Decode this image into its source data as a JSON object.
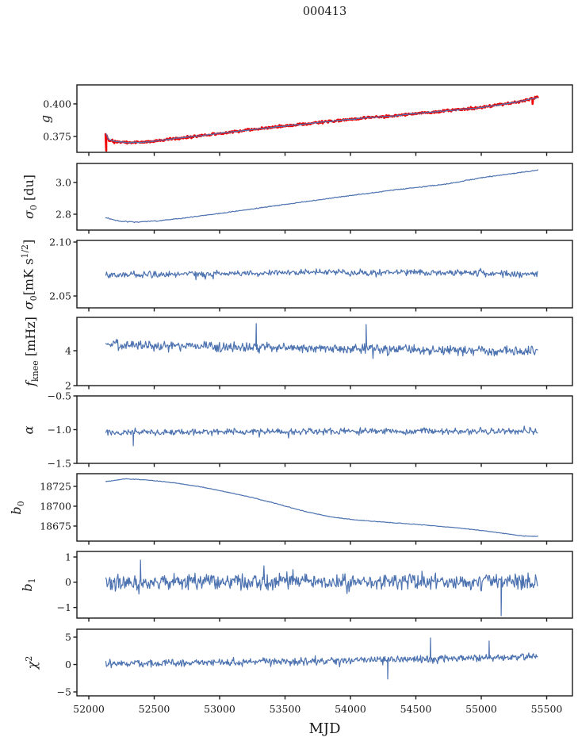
{
  "title": "000413",
  "xlabel": "MJD",
  "colors": {
    "line": "#4c72b0",
    "accent_red": "#f20000",
    "axis": "#1a1a1a",
    "background": "#ffffff"
  },
  "x_axis": {
    "lim": [
      51909,
      55697
    ],
    "ticks": [
      52000,
      52500,
      53000,
      53500,
      54000,
      54500,
      55000,
      55500
    ],
    "tick_labels": [
      "52000",
      "52500",
      "53000",
      "53500",
      "54000",
      "54500",
      "55000",
      "55500"
    ]
  },
  "chart_data": [
    {
      "name": "g",
      "type": "line",
      "ylabel_text": "g",
      "ylabel_segments": [
        [
          "i",
          "g"
        ]
      ],
      "ylim": [
        0.3628,
        0.4146
      ],
      "yticks": [
        0.4,
        0.375
      ],
      "ytick_labels": [
        "0.400",
        "0.375"
      ],
      "series": [
        {
          "name": "gain-raw",
          "color": "#f20000",
          "width": 2.6,
          "seed": 101,
          "n": 640,
          "x_range": [
            52128,
            55432
          ],
          "noise": 0.0011,
          "tail": 2.0,
          "tail_p": 0.05,
          "trend": [
            [
              52128,
              0.377
            ],
            [
              52150,
              0.3726
            ],
            [
              52210,
              0.371
            ],
            [
              52310,
              0.3702
            ],
            [
              52450,
              0.3708
            ],
            [
              52650,
              0.3733
            ],
            [
              52900,
              0.3762
            ],
            [
              53150,
              0.3792
            ],
            [
              53400,
              0.382
            ],
            [
              53650,
              0.3846
            ],
            [
              53900,
              0.3872
            ],
            [
              54150,
              0.3896
            ],
            [
              54300,
              0.3904
            ],
            [
              54450,
              0.3922
            ],
            [
              54700,
              0.3944
            ],
            [
              54950,
              0.3966
            ],
            [
              55150,
              0.3995
            ],
            [
              55300,
              0.402
            ],
            [
              55432,
              0.405
            ]
          ],
          "spikes": [
            [
              52133,
              0.364
            ],
            [
              55392,
              0.4
            ]
          ]
        },
        {
          "name": "gain-smoothed",
          "color": "#4c72b0",
          "width": 1.2,
          "seed": 102,
          "n": 620,
          "x_range": [
            52132,
            55428
          ],
          "noise": 0.0005,
          "tail": 1.4,
          "tail_p": 0.04,
          "trend": [
            [
              52132,
              0.3768
            ],
            [
              52150,
              0.3726
            ],
            [
              52210,
              0.371
            ],
            [
              52310,
              0.3702
            ],
            [
              52450,
              0.3708
            ],
            [
              52650,
              0.3733
            ],
            [
              52900,
              0.3762
            ],
            [
              53150,
              0.3792
            ],
            [
              53400,
              0.382
            ],
            [
              53650,
              0.3846
            ],
            [
              53900,
              0.3872
            ],
            [
              54150,
              0.3896
            ],
            [
              54300,
              0.3904
            ],
            [
              54450,
              0.3922
            ],
            [
              54700,
              0.3944
            ],
            [
              54950,
              0.3966
            ],
            [
              55150,
              0.3995
            ],
            [
              55300,
              0.402
            ],
            [
              55428,
              0.4048
            ]
          ],
          "spikes": []
        }
      ]
    },
    {
      "name": "sigma0-du",
      "type": "line",
      "ylabel_text": "sigma_0 [du]",
      "ylabel_segments": [
        [
          "i",
          "σ"
        ],
        [
          "sub",
          "0"
        ],
        [
          "n",
          " [du]"
        ]
      ],
      "ylim": [
        2.7,
        3.12
      ],
      "yticks": [
        3.0,
        2.8
      ],
      "ytick_labels": [
        "3.0",
        "2.8"
      ],
      "series": [
        {
          "name": "sigma0-du",
          "color": "#4c72b0",
          "width": 1.2,
          "seed": 201,
          "n": 560,
          "x_range": [
            52130,
            55432
          ],
          "noise": 0.0035,
          "tail": 1.5,
          "tail_p": 0.04,
          "trend": [
            [
              52130,
              2.778
            ],
            [
              52230,
              2.757
            ],
            [
              52360,
              2.75
            ],
            [
              52520,
              2.758
            ],
            [
              52750,
              2.778
            ],
            [
              53000,
              2.805
            ],
            [
              53250,
              2.833
            ],
            [
              53500,
              2.862
            ],
            [
              53750,
              2.89
            ],
            [
              54000,
              2.918
            ],
            [
              54250,
              2.944
            ],
            [
              54500,
              2.968
            ],
            [
              54750,
              2.992
            ],
            [
              55000,
              3.03
            ],
            [
              55200,
              3.052
            ],
            [
              55350,
              3.068
            ],
            [
              55432,
              3.078
            ]
          ],
          "spikes": []
        }
      ]
    },
    {
      "name": "sigma0-mK",
      "type": "line",
      "ylabel_text": "sigma_0 [mK s^(1/2)]",
      "ylabel_segments": [
        [
          "i",
          "σ"
        ],
        [
          "sub",
          "0"
        ],
        [
          "n",
          "[mK s"
        ],
        [
          "sup",
          "1/2"
        ],
        [
          "n",
          "]"
        ]
      ],
      "ylim": [
        2.039,
        2.1015
      ],
      "yticks": [
        2.1,
        2.05
      ],
      "ytick_labels": [
        "2.10",
        "2.05"
      ],
      "series": [
        {
          "name": "sigma0-mK",
          "color": "#4c72b0",
          "width": 1.2,
          "seed": 301,
          "n": 600,
          "x_range": [
            52130,
            55430
          ],
          "noise": 0.0036,
          "tail": 1.7,
          "tail_p": 0.05,
          "trend": [
            [
              52130,
              2.07
            ],
            [
              52500,
              2.0697
            ],
            [
              53000,
              2.0706
            ],
            [
              53500,
              2.0716
            ],
            [
              53900,
              2.0722
            ],
            [
              54300,
              2.0718
            ],
            [
              54700,
              2.0713
            ],
            [
              55100,
              2.0707
            ],
            [
              55430,
              2.0698
            ]
          ],
          "spikes": []
        }
      ]
    },
    {
      "name": "fknee",
      "type": "line",
      "ylabel_text": "f_knee [mHz]",
      "ylabel_segments": [
        [
          "i",
          "f"
        ],
        [
          "sub",
          "knee"
        ],
        [
          "n",
          " [mHz]"
        ]
      ],
      "ylim": [
        2.0,
        5.91
      ],
      "yticks": [
        4,
        2
      ],
      "ytick_labels": [
        "4",
        "2"
      ],
      "series": [
        {
          "name": "fknee",
          "color": "#4c72b0",
          "width": 1.2,
          "seed": 401,
          "n": 620,
          "x_range": [
            52130,
            55430
          ],
          "noise": 0.34,
          "tail": 1.8,
          "tail_p": 0.06,
          "trend": [
            [
              52130,
              4.38
            ],
            [
              52500,
              4.28
            ],
            [
              53000,
              4.22
            ],
            [
              53500,
              4.16
            ],
            [
              54000,
              4.1
            ],
            [
              54500,
              4.05
            ],
            [
              55000,
              4.0
            ],
            [
              55430,
              3.97
            ]
          ],
          "spikes": [
            [
              53280,
              5.55
            ],
            [
              54120,
              5.5
            ]
          ]
        }
      ]
    },
    {
      "name": "alpha",
      "type": "line",
      "ylabel_text": "alpha",
      "ylabel_segments": [
        [
          "i",
          "α"
        ]
      ],
      "ylim": [
        -1.5,
        -0.5
      ],
      "yticks": [
        -0.5,
        -1.0,
        -1.5
      ],
      "ytick_labels": [
        "−0.5",
        "−1.0",
        "−1.5"
      ],
      "series": [
        {
          "name": "alpha",
          "color": "#4c72b0",
          "width": 1.2,
          "seed": 501,
          "n": 620,
          "x_range": [
            52130,
            55430
          ],
          "noise": 0.058,
          "tail": 1.8,
          "tail_p": 0.05,
          "trend": [
            [
              52130,
              -1.045
            ],
            [
              53000,
              -1.035
            ],
            [
              54000,
              -1.025
            ],
            [
              55430,
              -1.02
            ]
          ],
          "spikes": [
            [
              52340,
              -1.24
            ]
          ]
        }
      ]
    },
    {
      "name": "b0",
      "type": "line",
      "ylabel_text": "b_0",
      "ylabel_segments": [
        [
          "i",
          "b"
        ],
        [
          "sub",
          "0"
        ]
      ],
      "ylim": [
        18656,
        18741
      ],
      "yticks": [
        18725,
        18700,
        18675
      ],
      "ytick_labels": [
        "18725",
        "18700",
        "18675"
      ],
      "series": [
        {
          "name": "b0",
          "color": "#4c72b0",
          "width": 1.2,
          "seed": 601,
          "n": 560,
          "x_range": [
            52130,
            55432
          ],
          "noise": 0.45,
          "tail": 1.4,
          "tail_p": 0.04,
          "trend": [
            [
              52130,
              18731
            ],
            [
              52280,
              18734.5
            ],
            [
              52450,
              18733
            ],
            [
              52650,
              18729.5
            ],
            [
              52850,
              18724.5
            ],
            [
              53050,
              18718
            ],
            [
              53250,
              18711
            ],
            [
              53450,
              18702.5
            ],
            [
              53650,
              18693.5
            ],
            [
              53850,
              18686.5
            ],
            [
              54050,
              18682.5
            ],
            [
              54300,
              18679.5
            ],
            [
              54550,
              18676.5
            ],
            [
              54800,
              18673
            ],
            [
              55000,
              18669.5
            ],
            [
              55180,
              18665.5
            ],
            [
              55320,
              18662.5
            ],
            [
              55420,
              18662
            ],
            [
              55432,
              18662.5
            ]
          ],
          "spikes": []
        }
      ]
    },
    {
      "name": "b1",
      "type": "line",
      "ylabel_text": "b_1",
      "ylabel_segments": [
        [
          "i",
          "b"
        ],
        [
          "sub",
          "1"
        ]
      ],
      "ylim": [
        -1.42,
        1.22
      ],
      "yticks": [
        1,
        0,
        -1
      ],
      "ytick_labels": [
        "1",
        "0",
        "−1"
      ],
      "series": [
        {
          "name": "b1",
          "color": "#4c72b0",
          "width": 1.2,
          "seed": 701,
          "n": 640,
          "x_range": [
            52130,
            55430
          ],
          "noise": 0.36,
          "tail": 1.8,
          "tail_p": 0.07,
          "trend": [
            [
              52130,
              0.02
            ],
            [
              55430,
              0.02
            ]
          ],
          "spikes": [
            [
              52395,
              0.88
            ],
            [
              55152,
              -1.33
            ]
          ]
        }
      ]
    },
    {
      "name": "chi2",
      "type": "line",
      "ylabel_text": "chi^2",
      "ylabel_segments": [
        [
          "i",
          "χ"
        ],
        [
          "sup",
          "2"
        ]
      ],
      "ylim": [
        -5.72,
        6.45
      ],
      "yticks": [
        5,
        0,
        -5
      ],
      "ytick_labels": [
        "5",
        "0",
        "−5"
      ],
      "series": [
        {
          "name": "chi2",
          "color": "#4c72b0",
          "width": 1.2,
          "seed": 801,
          "n": 640,
          "x_range": [
            52130,
            55430
          ],
          "noise": 0.82,
          "tail": 1.7,
          "tail_p": 0.06,
          "trend": [
            [
              52130,
              0.15
            ],
            [
              53000,
              0.35
            ],
            [
              53800,
              0.65
            ],
            [
              54600,
              1.0
            ],
            [
              55100,
              1.3
            ],
            [
              55430,
              1.45
            ]
          ],
          "spikes": [
            [
              54285,
              -2.65
            ],
            [
              54612,
              4.85
            ],
            [
              55060,
              4.3
            ]
          ]
        }
      ]
    }
  ]
}
